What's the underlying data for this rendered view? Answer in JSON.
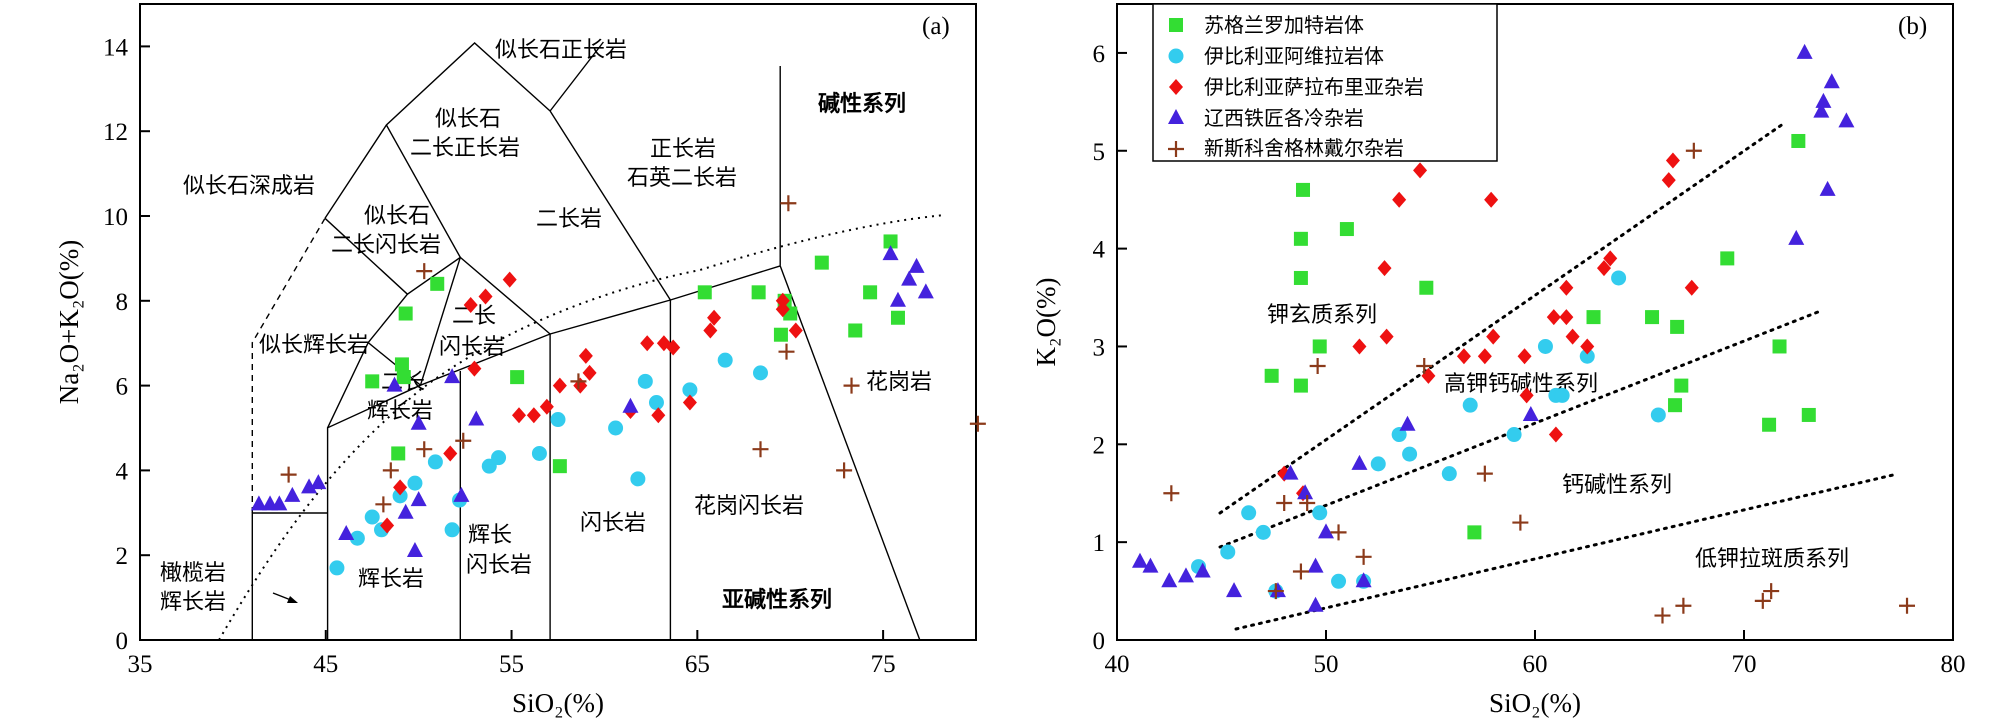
{
  "colors": {
    "green": "#33dd33",
    "cyan": "#33ccee",
    "red": "#ee1111",
    "blue": "#4422dd",
    "brown": "#8b3a1a"
  },
  "chart_data": [
    {
      "type": "scatter",
      "panel_label": "(a)",
      "title": "",
      "xlabel": "SiO₂(%)",
      "ylabel": "Na₂O+K₂O(%)",
      "xlim": [
        35,
        80
      ],
      "ylim": [
        0,
        15
      ],
      "xticks": [
        35,
        45,
        55,
        65,
        75
      ],
      "yticks": [
        0,
        2,
        4,
        6,
        8,
        10,
        12,
        14
      ],
      "field_labels": [
        "似长石正长岩",
        "似长石",
        "二长正长岩",
        "似长石深成岩",
        "似长石",
        "二长闪长岩",
        "正长岩",
        "石英二长岩",
        "碱性系列",
        "二长岩",
        "似长辉长岩",
        "二长",
        "闪长岩",
        "二长",
        "辉长岩",
        "花岗岩",
        "辉长",
        "闪长岩",
        "辉长岩",
        "闪长岩",
        "花岗闪长岩",
        "橄榄岩",
        "辉长岩",
        "亚碱性系列"
      ],
      "series": [
        {
          "name": "苏格兰罗加特岩体",
          "marker": "square",
          "points": [
            [
              47.5,
              6.1
            ],
            [
              49.3,
              7.7
            ],
            [
              49.1,
              6.5
            ],
            [
              49.2,
              6.2
            ],
            [
              48.9,
              4.4
            ],
            [
              51.0,
              8.4
            ],
            [
              55.3,
              6.2
            ],
            [
              57.6,
              4.1
            ],
            [
              65.4,
              8.2
            ],
            [
              68.3,
              8.2
            ],
            [
              69.5,
              7.2
            ],
            [
              69.7,
              8.0
            ],
            [
              70.0,
              7.7
            ],
            [
              71.7,
              8.9
            ],
            [
              73.5,
              7.3
            ],
            [
              74.3,
              8.2
            ],
            [
              75.4,
              9.4
            ],
            [
              75.8,
              7.6
            ]
          ]
        },
        {
          "name": "伊比利亚阿维拉岩体",
          "marker": "circle",
          "points": [
            [
              45.6,
              1.7
            ],
            [
              46.7,
              2.4
            ],
            [
              47.5,
              2.9
            ],
            [
              48.0,
              2.6
            ],
            [
              49.0,
              3.4
            ],
            [
              49.8,
              3.7
            ],
            [
              50.9,
              4.2
            ],
            [
              51.8,
              2.6
            ],
            [
              52.2,
              3.3
            ],
            [
              53.8,
              4.1
            ],
            [
              54.3,
              4.3
            ],
            [
              56.5,
              4.4
            ],
            [
              57.5,
              5.2
            ],
            [
              60.6,
              5.0
            ],
            [
              61.8,
              3.8
            ],
            [
              62.2,
              6.1
            ],
            [
              62.8,
              5.6
            ],
            [
              64.6,
              5.9
            ],
            [
              66.5,
              6.6
            ],
            [
              68.4,
              6.3
            ]
          ]
        },
        {
          "name": "伊比利亚萨拉布里亚杂岩",
          "marker": "diamond",
          "points": [
            [
              48.3,
              2.7
            ],
            [
              49.0,
              3.6
            ],
            [
              51.7,
              4.4
            ],
            [
              53.0,
              6.4
            ],
            [
              52.8,
              7.9
            ],
            [
              53.6,
              8.1
            ],
            [
              54.9,
              8.5
            ],
            [
              55.4,
              5.3
            ],
            [
              56.2,
              5.3
            ],
            [
              56.9,
              5.5
            ],
            [
              57.6,
              6.0
            ],
            [
              58.7,
              6.0
            ],
            [
              59.0,
              6.7
            ],
            [
              59.2,
              6.3
            ],
            [
              61.4,
              5.4
            ],
            [
              62.3,
              7.0
            ],
            [
              62.9,
              5.3
            ],
            [
              63.2,
              7.0
            ],
            [
              63.7,
              6.9
            ],
            [
              64.6,
              5.6
            ],
            [
              65.7,
              7.3
            ],
            [
              65.9,
              7.6
            ],
            [
              69.6,
              8.0
            ],
            [
              69.6,
              7.8
            ],
            [
              70.3,
              7.3
            ]
          ]
        },
        {
          "name": "辽西铁匠各冷杂岩",
          "marker": "triangle",
          "points": [
            [
              41.4,
              3.2
            ],
            [
              42.0,
              3.2
            ],
            [
              42.5,
              3.2
            ],
            [
              43.2,
              3.4
            ],
            [
              44.1,
              3.6
            ],
            [
              44.6,
              3.7
            ],
            [
              46.1,
              2.5
            ],
            [
              48.7,
              6.0
            ],
            [
              49.3,
              3.0
            ],
            [
              50.0,
              3.3
            ],
            [
              49.8,
              2.1
            ],
            [
              50.0,
              5.1
            ],
            [
              51.8,
              6.2
            ],
            [
              52.3,
              3.4
            ],
            [
              53.1,
              5.2
            ],
            [
              61.4,
              5.5
            ],
            [
              75.4,
              9.1
            ],
            [
              75.8,
              8.0
            ],
            [
              76.4,
              8.5
            ],
            [
              76.8,
              8.8
            ],
            [
              77.3,
              8.2
            ]
          ]
        },
        {
          "name": "新斯科舍格林戴尔杂岩",
          "marker": "plus",
          "points": [
            [
              43.0,
              3.9
            ],
            [
              48.1,
              3.2
            ],
            [
              48.5,
              4.0
            ],
            [
              50.3,
              8.7
            ],
            [
              50.3,
              4.5
            ],
            [
              52.4,
              4.7
            ],
            [
              58.6,
              6.1
            ],
            [
              68.4,
              4.5
            ],
            [
              69.9,
              10.3
            ],
            [
              69.8,
              6.8
            ],
            [
              72.9,
              4.0
            ],
            [
              73.3,
              6.0
            ],
            [
              80.1,
              5.1
            ]
          ]
        }
      ]
    },
    {
      "type": "scatter",
      "panel_label": "(b)",
      "title": "",
      "xlabel": "SiO₂(%)",
      "ylabel": "K₂O(%)",
      "xlim": [
        40,
        80
      ],
      "ylim": [
        0,
        6.5
      ],
      "xticks": [
        40,
        50,
        60,
        70,
        80
      ],
      "yticks": [
        0,
        1,
        2,
        3,
        4,
        5,
        6
      ],
      "legend_position": "top-left",
      "field_labels": [
        "钾玄质系列",
        "高钾钙碱性系列",
        "钙碱性系列",
        "低钾拉斑质系列"
      ],
      "series": [
        {
          "name": "苏格兰罗加特岩体",
          "marker": "square",
          "points": [
            [
              47.4,
              2.7
            ],
            [
              48.9,
              4.6
            ],
            [
              48.8,
              4.1
            ],
            [
              48.8,
              3.7
            ],
            [
              49.7,
              3.0
            ],
            [
              48.8,
              2.6
            ],
            [
              51.0,
              4.2
            ],
            [
              54.8,
              3.6
            ],
            [
              57.1,
              1.1
            ],
            [
              62.8,
              3.3
            ],
            [
              65.6,
              3.3
            ],
            [
              66.8,
              3.2
            ],
            [
              67.0,
              2.6
            ],
            [
              66.7,
              2.4
            ],
            [
              69.2,
              3.9
            ],
            [
              71.2,
              2.2
            ],
            [
              71.7,
              3.0
            ],
            [
              72.6,
              5.1
            ],
            [
              73.1,
              2.3
            ]
          ]
        },
        {
          "name": "伊比利亚阿维拉岩体",
          "marker": "circle",
          "points": [
            [
              43.9,
              0.75
            ],
            [
              45.3,
              0.9
            ],
            [
              46.3,
              1.3
            ],
            [
              47.0,
              1.1
            ],
            [
              47.6,
              0.5
            ],
            [
              49.7,
              1.3
            ],
            [
              50.6,
              0.6
            ],
            [
              51.8,
              0.6
            ],
            [
              52.5,
              1.8
            ],
            [
              53.5,
              2.1
            ],
            [
              54.0,
              1.9
            ],
            [
              55.9,
              1.7
            ],
            [
              56.9,
              2.4
            ],
            [
              59.0,
              2.1
            ],
            [
              60.5,
              3.0
            ],
            [
              61.0,
              2.5
            ],
            [
              61.3,
              2.5
            ],
            [
              62.5,
              2.9
            ],
            [
              64.0,
              3.7
            ],
            [
              65.9,
              2.3
            ]
          ]
        },
        {
          "name": "伊比利亚萨拉布里亚杂岩",
          "marker": "diamond",
          "points": [
            [
              48.0,
              1.7
            ],
            [
              48.9,
              1.5
            ],
            [
              51.6,
              3.0
            ],
            [
              52.8,
              3.8
            ],
            [
              52.9,
              3.1
            ],
            [
              53.5,
              4.5
            ],
            [
              54.5,
              4.8
            ],
            [
              54.9,
              2.7
            ],
            [
              56.6,
              2.9
            ],
            [
              57.6,
              2.9
            ],
            [
              57.9,
              4.5
            ],
            [
              58.0,
              3.1
            ],
            [
              59.5,
              2.9
            ],
            [
              59.6,
              2.5
            ],
            [
              60.9,
              3.3
            ],
            [
              61.0,
              2.1
            ],
            [
              61.5,
              3.3
            ],
            [
              61.5,
              3.6
            ],
            [
              61.8,
              3.1
            ],
            [
              62.5,
              3.0
            ],
            [
              63.3,
              3.8
            ],
            [
              63.6,
              3.9
            ],
            [
              66.4,
              4.7
            ],
            [
              66.6,
              4.9
            ],
            [
              67.5,
              3.6
            ]
          ]
        },
        {
          "name": "辽西铁匠各冷杂岩",
          "marker": "triangle",
          "points": [
            [
              41.1,
              0.8
            ],
            [
              41.6,
              0.75
            ],
            [
              42.5,
              0.6
            ],
            [
              43.3,
              0.65
            ],
            [
              44.1,
              0.7
            ],
            [
              45.6,
              0.5
            ],
            [
              47.7,
              0.5
            ],
            [
              48.3,
              1.7
            ],
            [
              49.0,
              1.5
            ],
            [
              49.5,
              0.75
            ],
            [
              49.5,
              0.35
            ],
            [
              50.0,
              1.1
            ],
            [
              51.6,
              1.8
            ],
            [
              51.8,
              0.6
            ],
            [
              53.9,
              2.2
            ],
            [
              59.8,
              2.3
            ],
            [
              72.5,
              4.1
            ],
            [
              72.9,
              6.0
            ],
            [
              73.7,
              5.4
            ],
            [
              73.8,
              5.5
            ],
            [
              74.0,
              4.6
            ],
            [
              74.2,
              5.7
            ],
            [
              74.9,
              5.3
            ]
          ]
        },
        {
          "name": "新斯科舍格林戴尔杂岩",
          "marker": "plus",
          "points": [
            [
              42.6,
              1.5
            ],
            [
              47.6,
              0.5
            ],
            [
              48.0,
              1.4
            ],
            [
              48.8,
              0.7
            ],
            [
              49.1,
              1.4
            ],
            [
              49.6,
              2.8
            ],
            [
              50.6,
              1.1
            ],
            [
              51.8,
              0.85
            ],
            [
              54.7,
              2.8
            ],
            [
              57.6,
              1.7
            ],
            [
              59.3,
              1.2
            ],
            [
              66.1,
              0.25
            ],
            [
              67.1,
              0.35
            ],
            [
              67.6,
              5.0
            ],
            [
              70.9,
              0.4
            ],
            [
              71.3,
              0.5
            ],
            [
              77.8,
              0.35
            ]
          ]
        }
      ]
    }
  ]
}
